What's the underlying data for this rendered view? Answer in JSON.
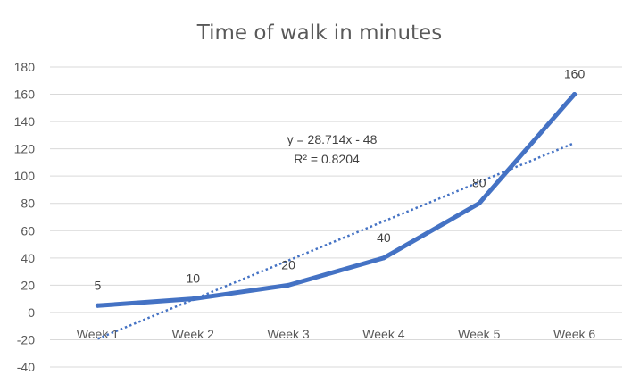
{
  "chart_data": {
    "type": "line",
    "title": "Time of walk in minutes",
    "categories": [
      "Week 1",
      "Week 2",
      "Week 3",
      "Week 4",
      "Week 5",
      "Week 6"
    ],
    "series": [
      {
        "values": [
          5,
          10,
          20,
          40,
          80,
          160
        ],
        "color": "#4472c4"
      }
    ],
    "data_labels": [
      "5",
      "10",
      "20",
      "40",
      "80",
      "160"
    ],
    "yticks": [
      "180",
      "160",
      "140",
      "120",
      "100",
      "80",
      "60",
      "40",
      "20",
      "0",
      "-20",
      "-40"
    ],
    "ylim": [
      -40,
      180
    ],
    "grid": true,
    "legend": "none",
    "trendline": {
      "type": "linear",
      "slope": 28.714,
      "intercept": -48,
      "equation": "y = 28.714x - 48",
      "r_squared": "R² = 0.8204",
      "style": "dotted",
      "color": "#4472c4"
    }
  }
}
